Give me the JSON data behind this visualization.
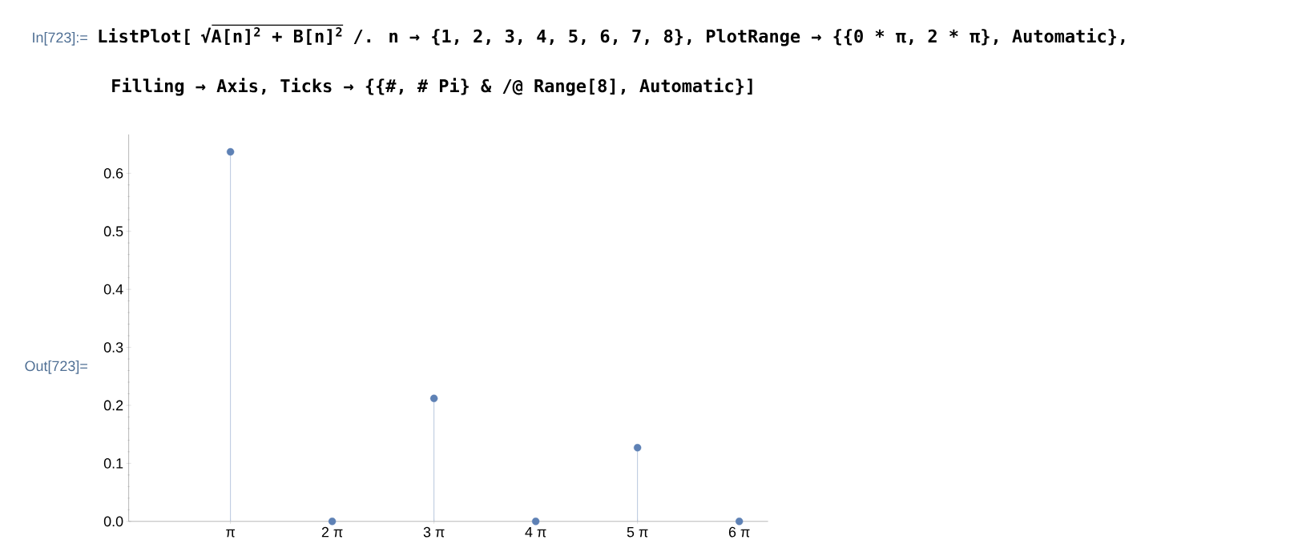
{
  "chart_data": {
    "type": "lollipop",
    "annotations": [
      "In[723]:=",
      "ListPlot[",
      "√A[n]$^{2}$ + B[n]$^{2}$",
      "/. n → {1, 2, 3, 4, 5, 6, 7, 8}, PlotRange → {{0 * π, 2 * π}, Automatic},",
      "Filling → Axis, Ticks → {{#, # Pi} & /@ Range[8], Automatic}]",
      "Out[723]="
    ],
    "x": [
      3.142,
      6.283,
      9.425,
      12.566,
      15.708,
      18.85
    ],
    "values": [
      0.637,
      0,
      0.212,
      0,
      0.127,
      0
    ],
    "color": "#5e81b5",
    "xlim": [
      0,
      19.739
    ],
    "ylim": [
      0,
      0.667
    ],
    "xticks": [
      {
        "value": 3.142,
        "label": "π"
      },
      {
        "value": 6.283,
        "label": "2 π"
      },
      {
        "value": 9.425,
        "label": "3 π"
      },
      {
        "value": 12.566,
        "label": "4 π"
      },
      {
        "value": 15.708,
        "label": "5 π"
      },
      {
        "value": 18.85,
        "label": "6 π"
      }
    ],
    "yticks": [
      {
        "value": 0,
        "label": "0.0"
      },
      {
        "value": 0.1,
        "label": "0.1"
      },
      {
        "value": 0.2,
        "label": "0.2"
      },
      {
        "value": 0.3,
        "label": "0.3"
      },
      {
        "value": 0.4,
        "label": "0.4"
      },
      {
        "value": 0.5,
        "label": "0.5"
      },
      {
        "value": 0.6,
        "label": "0.6"
      }
    ]
  }
}
